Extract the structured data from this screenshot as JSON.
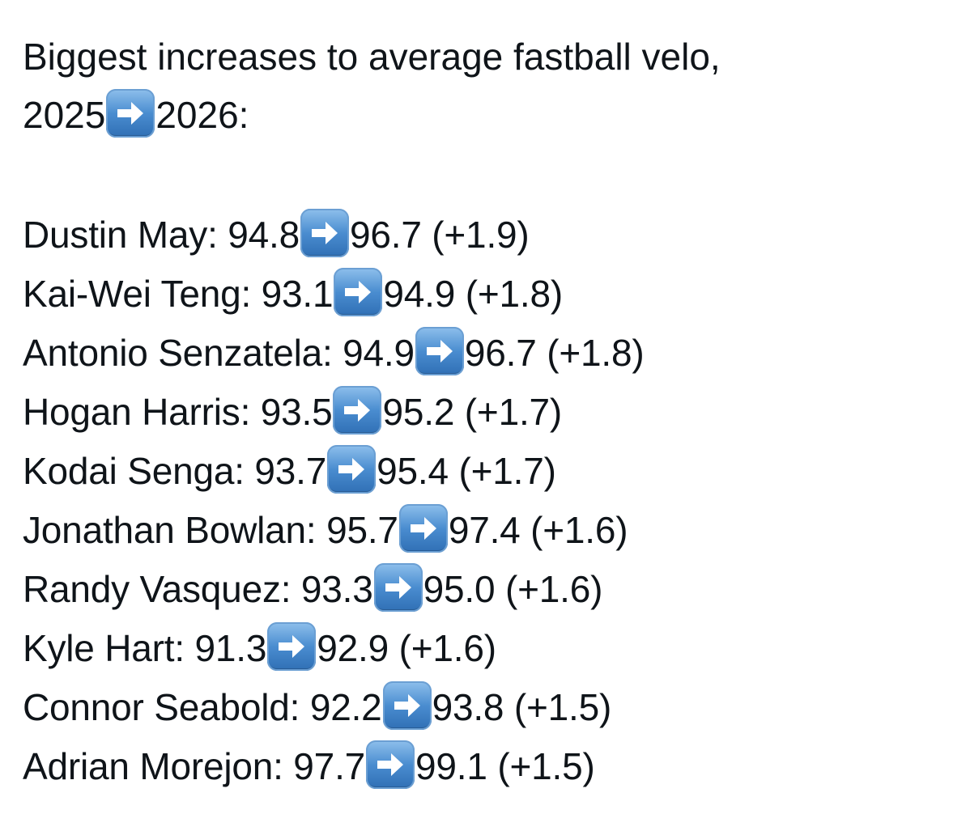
{
  "post": {
    "title_line1": "Biggest increases to average fastball velo,",
    "title_year_from": "2025",
    "title_year_to": "2026:",
    "arrow_icon": "right-arrow-icon",
    "arrow_color": "#4a8dd0",
    "rows": [
      {
        "prefix": "Dustin May:  94.8",
        "suffix": "96.7 (+1.9)"
      },
      {
        "prefix": "Kai-Wei Teng:  93.1",
        "suffix": "94.9 (+1.8)"
      },
      {
        "prefix": "Antonio Senzatela: 94.9",
        "suffix": "96.7 (+1.8)"
      },
      {
        "prefix": "Hogan Harris: 93.5",
        "suffix": "95.2 (+1.7)"
      },
      {
        "prefix": "Kodai Senga: 93.7",
        "suffix": "95.4 (+1.7)"
      },
      {
        "prefix": "Jonathan Bowlan: 95.7",
        "suffix": "97.4 (+1.6)"
      },
      {
        "prefix": "Randy Vasquez: 93.3",
        "suffix": "95.0 (+1.6)"
      },
      {
        "prefix": "Kyle Hart: 91.3",
        "suffix": "92.9 (+1.6)"
      },
      {
        "prefix": "Connor Seabold: 92.2",
        "suffix": "93.8 (+1.5)"
      },
      {
        "prefix": "Adrian Morejon: 97.7",
        "suffix": "99.1 (+1.5)"
      }
    ]
  }
}
